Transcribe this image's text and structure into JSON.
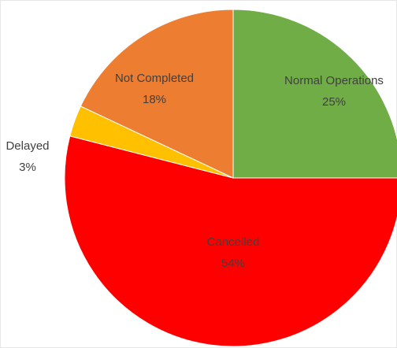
{
  "chart_data": {
    "type": "pie",
    "categories": [
      "Normal Operations",
      "Cancelled",
      "Delayed",
      "Not Completed"
    ],
    "values": [
      25,
      54,
      3,
      18
    ],
    "value_labels": [
      "25%",
      "54%",
      "3%",
      "18%"
    ],
    "colors": [
      "#70ad47",
      "#ff0000",
      "#ffc000",
      "#ed7d31"
    ]
  }
}
